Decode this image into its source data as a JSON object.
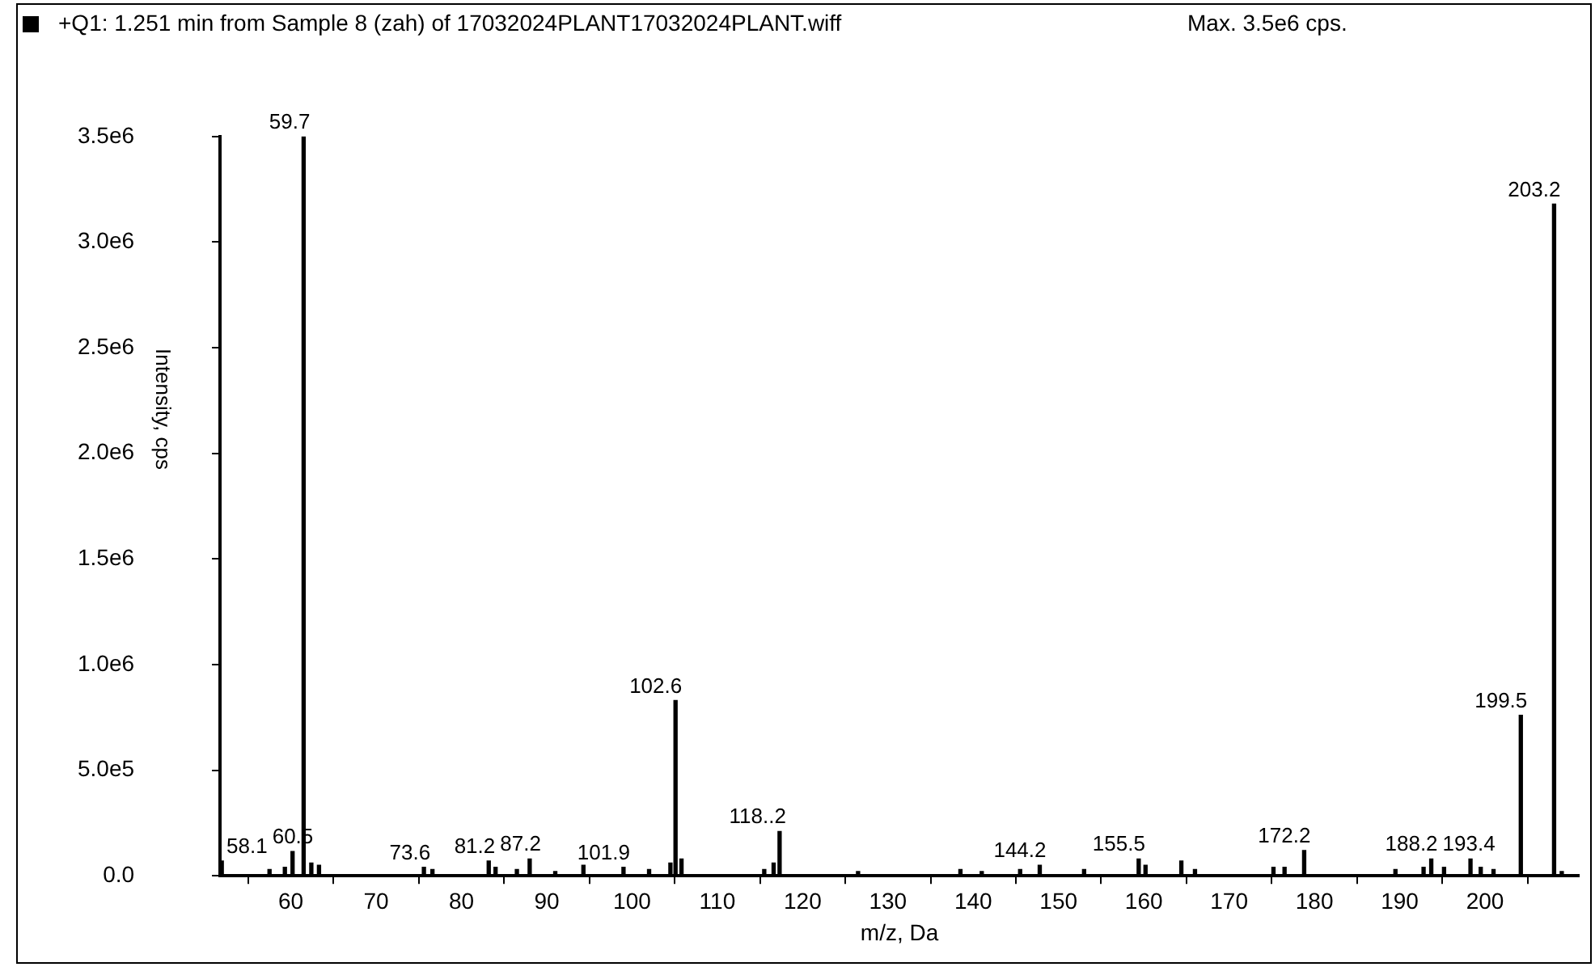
{
  "chart_data": {
    "type": "bar",
    "title": "+Q1: 1.251 min from Sample 8 (zah) of 17032024PLANT17032024PLANT.wiff",
    "subtitle": "Max. 3.5e6 cps.",
    "xlabel": "m/z, Da",
    "ylabel": "Intensity, cps",
    "color": "#000000",
    "x": [
      51.9,
      57.5,
      59.3,
      60.2,
      61.5,
      62.4,
      63.3,
      75.6,
      76.6,
      83.2,
      84.0,
      86.5,
      88.0,
      91.0,
      94.3,
      99.0,
      102.0,
      104.5,
      105.1,
      105.8,
      115.5,
      116.6,
      117.3,
      126.5,
      138.5,
      141.0,
      145.5,
      147.8,
      153.0,
      159.4,
      160.2,
      164.4,
      166.0,
      175.2,
      176.5,
      178.8,
      189.5,
      192.8,
      193.7,
      195.2,
      198.3,
      199.5,
      201.0,
      204.2,
      208.1,
      209.0
    ],
    "values": [
      70000,
      30000,
      40000,
      115000,
      3500000,
      60000,
      50000,
      40000,
      30000,
      70000,
      40000,
      30000,
      80000,
      20000,
      50000,
      40000,
      30000,
      60000,
      830000,
      80000,
      30000,
      60000,
      210000,
      20000,
      30000,
      20000,
      30000,
      50000,
      30000,
      80000,
      50000,
      70000,
      30000,
      40000,
      40000,
      120000,
      30000,
      40000,
      80000,
      40000,
      80000,
      40000,
      30000,
      760000,
      3180000,
      20000
    ],
    "xlim": [
      51.7,
      211
    ],
    "xticks": [
      60,
      70,
      80,
      90,
      100,
      110,
      120,
      130,
      140,
      150,
      160,
      170,
      180,
      190,
      200
    ],
    "ylim": [
      0,
      3500000
    ],
    "yticks": [
      {
        "value": 0,
        "label": "0.0"
      },
      {
        "value": 500000,
        "label": "5.0e5"
      },
      {
        "value": 1000000,
        "label": "1.0e6"
      },
      {
        "value": 1500000,
        "label": "1.5e6"
      },
      {
        "value": 2000000,
        "label": "2.0e6"
      },
      {
        "value": 2500000,
        "label": "2.5e6"
      },
      {
        "value": 3000000,
        "label": "3.0e6"
      },
      {
        "value": 3500000,
        "label": "3.5e6"
      }
    ],
    "grid": false,
    "annotations": [
      {
        "text": "59.7",
        "x": 61.5,
        "y": 3500000
      },
      {
        "text": "203.2",
        "x": 208.1,
        "y": 3180000
      },
      {
        "text": "199.5",
        "x": 204.2,
        "y": 760000
      },
      {
        "text": "102.6",
        "x": 105.1,
        "y": 830000
      },
      {
        "text": "118..2",
        "x": 117.3,
        "y": 210000
      },
      {
        "text": "58.1",
        "x": 51.9,
        "y": 70000
      },
      {
        "text": "60.5",
        "x": 60.2,
        "y": 115000
      },
      {
        "text": "73.6",
        "x": 75.6,
        "y": 40000
      },
      {
        "text": "81.2",
        "x": 83.2,
        "y": 70000
      },
      {
        "text": "87.2",
        "x": 88.0,
        "y": 80000
      },
      {
        "text": "101.9",
        "x": 99.0,
        "y": 40000
      },
      {
        "text": "144.2",
        "x": 147.8,
        "y": 50000
      },
      {
        "text": "155.5",
        "x": 159.4,
        "y": 80000
      },
      {
        "text": "172.2",
        "x": 178.8,
        "y": 120000
      },
      {
        "text": "188.2",
        "x": 193.7,
        "y": 80000
      },
      {
        "text": "193.4",
        "x": 198.3,
        "y": 80000
      }
    ]
  }
}
